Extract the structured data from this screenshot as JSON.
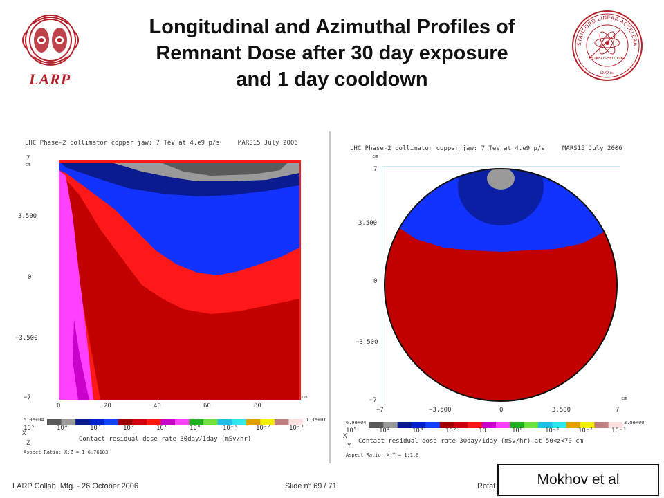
{
  "slide": {
    "title_lines": [
      "Longitudinal and Azimuthal Profiles of",
      "Remnant Dose after 30 day exposure",
      "and 1 day cooldown"
    ],
    "left_logo": {
      "text": "LARP",
      "icon": "lhc-magnet-logo-icon",
      "color": "#b5202a"
    },
    "right_logo": {
      "icon": "slac-seal-icon",
      "text_top": "STANFORD LINEAR ACCELERATOR CENTER",
      "text_established": "ESTABLISHED 1962",
      "text_doe": "D.O.E.",
      "color": "#b5202a"
    }
  },
  "left_plot": {
    "header": "LHC Phase-2 collimator copper jaw: 7 TeV at 4.e9 p/s",
    "code": "MARS15  July 2006",
    "y_unit": "cm",
    "x_unit": "cm",
    "y_ticks": [
      "7",
      "3.500",
      "0",
      "−3.500",
      "−7"
    ],
    "x_ticks": [
      "0",
      "20",
      "40",
      "60",
      "80"
    ],
    "scale_min": "5.0e+04",
    "scale_max": "1.3e+01",
    "scale_labels": [
      "10⁵",
      "10⁴",
      "10³",
      "10²",
      "10¹",
      "10⁰",
      "10⁻¹",
      "10⁻²",
      "10⁻³"
    ],
    "caption": "Contact residual dose rate 30day/1day (mSv/hr)",
    "axis_x": "X",
    "axis_z": "Z",
    "aspect": "Aspect Ratio: X:Z = 1:6.76183"
  },
  "right_plot": {
    "header": "LHC Phase-2 collimator copper jaw: 7 TeV at 4.e9 p/s",
    "code": "MARS15  July 2006",
    "y_unit": "cm",
    "x_unit": "cm",
    "y_ticks": [
      "7",
      "3.500",
      "0",
      "−3.500",
      "−7"
    ],
    "x_ticks": [
      "−7",
      "−3.500",
      "0",
      "3.500",
      "7"
    ],
    "scale_min": "6.9e+04",
    "scale_max": "3.0e+00",
    "scale_labels": [
      "10⁵",
      "10⁴",
      "10³",
      "10²",
      "10¹",
      "10⁰",
      "10⁻¹",
      "10⁻²",
      "10⁻³"
    ],
    "caption": "Contact residual dose rate 30day/1day (mSv/hr) at 50<z<70 cm",
    "axis_x": "X",
    "axis_y": "Y",
    "aspect": "Aspect Ratio: X:Y = 1:1.0"
  },
  "colors": {
    "scale": [
      "#5a5a5a",
      "#9a9a9a",
      "#0a1a8f",
      "#0020d0",
      "#1440ff",
      "#a00000",
      "#d00010",
      "#ff1818",
      "#cc00cc",
      "#ff40ff",
      "#20b020",
      "#70e040",
      "#20c0e0",
      "#30e8f0",
      "#e0a000",
      "#f0f000",
      "#c08080",
      "#ffe0e0"
    ]
  },
  "footer": {
    "meeting": "LARP Collab. Mtg.  -  26 October 2006",
    "slide_number": "Slide n° 69 / 71",
    "speaker": "Rotat",
    "credit": "Mokhov et al"
  }
}
